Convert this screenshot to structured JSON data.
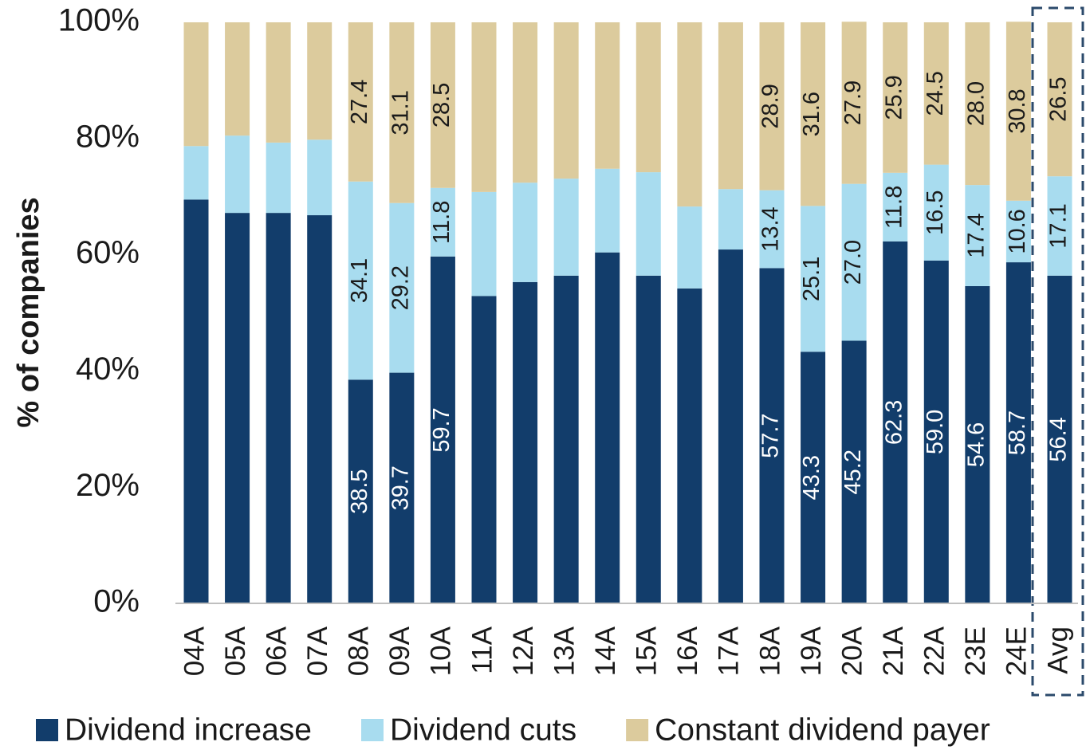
{
  "chart_data": {
    "type": "stacked_bar",
    "y_axis_label": "% of companies",
    "categories": [
      "04A",
      "05A",
      "06A",
      "07A",
      "08A",
      "09A",
      "10A",
      "11A",
      "12A",
      "13A",
      "14A",
      "15A",
      "16A",
      "17A",
      "18A",
      "19A",
      "20A",
      "21A",
      "22A",
      "23E",
      "24E",
      "Avg"
    ],
    "series": [
      {
        "name": "Dividend increase",
        "color": "#123d6b",
        "values": [
          69.5,
          67.2,
          67.2,
          66.8,
          38.5,
          39.7,
          59.7,
          52.9,
          55.3,
          56.4,
          60.4,
          56.4,
          54.2,
          60.9,
          57.7,
          43.3,
          45.2,
          62.3,
          59.0,
          54.6,
          58.7,
          56.4
        ],
        "value_labels": [
          null,
          null,
          null,
          null,
          "38.5",
          "39.7",
          "59.7",
          null,
          null,
          null,
          null,
          null,
          null,
          null,
          "57.7",
          "43.3",
          "45.2",
          "62.3",
          "59.0",
          "54.6",
          "58.7",
          "56.4"
        ]
      },
      {
        "name": "Dividend cuts",
        "color": "#a8dcef",
        "values": [
          9.2,
          13.3,
          12.1,
          13.0,
          34.1,
          29.2,
          11.8,
          17.9,
          17.1,
          16.7,
          14.4,
          17.8,
          14.1,
          10.4,
          13.4,
          25.1,
          27.0,
          11.8,
          16.5,
          17.4,
          10.6,
          17.1
        ],
        "value_labels": [
          null,
          null,
          null,
          null,
          "34.1",
          "29.2",
          "11.8",
          null,
          null,
          null,
          null,
          null,
          null,
          null,
          "13.4",
          "25.1",
          "27.0",
          "11.8",
          "16.5",
          "17.4",
          "10.6",
          "17.1"
        ]
      },
      {
        "name": "Constant dividend payer",
        "color": "#dccb9d",
        "values": [
          21.3,
          19.5,
          20.7,
          20.2,
          27.4,
          31.1,
          28.5,
          29.2,
          27.6,
          26.9,
          25.2,
          25.8,
          31.7,
          28.7,
          28.9,
          31.6,
          27.9,
          25.9,
          24.5,
          28.0,
          30.8,
          26.5
        ],
        "value_labels": [
          null,
          null,
          null,
          null,
          "27.4",
          "31.1",
          "28.5",
          null,
          null,
          null,
          null,
          null,
          null,
          null,
          "28.9",
          "31.6",
          "27.9",
          "25.9",
          "24.5",
          "28.0",
          "30.8",
          "26.5"
        ]
      }
    ],
    "ylim": [
      0,
      100
    ],
    "yticks": [
      {
        "value": 0,
        "label": "0%"
      },
      {
        "value": 20,
        "label": "20%"
      },
      {
        "value": 40,
        "label": "40%"
      },
      {
        "value": 60,
        "label": "60%"
      },
      {
        "value": 80,
        "label": "80%"
      },
      {
        "value": 100,
        "label": "100%"
      }
    ],
    "legend": "bottom"
  }
}
